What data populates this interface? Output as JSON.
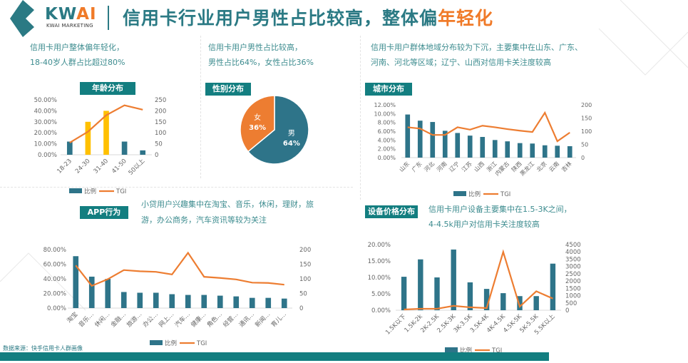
{
  "header": {
    "brand": "KW",
    "brand_accent": "AI",
    "brand_sub": "KWAI MARKETING",
    "title_main": "信用卡行业用户男性占比较高，整体偏",
    "title_highlight": "年轻化"
  },
  "sections": {
    "age": {
      "desc1": "信用卡用户整体偏年轻化，",
      "desc2": "18-40岁人群占比超过80%",
      "tag": "年龄分布"
    },
    "gender": {
      "desc1": "信用卡用户男性占比较高，",
      "desc2": "男性占比64%，女性占比36%",
      "tag": "性别分布"
    },
    "city": {
      "desc1": "信用卡用户群体地域分布较为下沉，主要集中在山东、广东、",
      "desc2": "河南、河北等区域；辽宁、山西对信用卡关注度较高",
      "tag": "城市分布"
    },
    "app": {
      "desc1": "小贷用户兴趣集中在淘宝、音乐，休闲，理财，旅",
      "desc2": "游，办公商务，汽车资讯等较为关注",
      "tag": "APP行为"
    },
    "device": {
      "desc1": "信用卡用户设备主要集中在1.5-3K之间，",
      "desc2": "4-4.5k用户对信用卡关注度较高",
      "tag": "设备价格分布"
    }
  },
  "source": "数据来源：快手信用卡人群画像",
  "colors": {
    "teal": "#2e7489",
    "orange": "#ed7d31",
    "yellow": "#ffc000",
    "tag_bg": "#137e80",
    "brand": "#2b7a84"
  },
  "chart_data": [
    {
      "id": "age",
      "type": "bar+line",
      "categories": [
        "18-23",
        "24-30",
        "31-40",
        "41-50",
        "50以上"
      ],
      "series": [
        {
          "name": "比例",
          "type": "bar",
          "axis": "left",
          "values": [
            12,
            30,
            40,
            12,
            4
          ],
          "highlight": [
            false,
            true,
            true,
            false,
            false
          ]
        },
        {
          "name": "TGI",
          "type": "line",
          "axis": "right",
          "values": [
            55,
            105,
            180,
            225,
            205
          ]
        }
      ],
      "ylim_left": [
        0,
        50
      ],
      "yticks_left": [
        "0.00%",
        "10.00%",
        "20.00%",
        "30.00%",
        "40.00%",
        "50.00%"
      ],
      "ylim_right": [
        0,
        250
      ],
      "yticks_right": [
        "0",
        "50",
        "100",
        "150",
        "200",
        "250"
      ],
      "legend": "bottom"
    },
    {
      "id": "gender",
      "type": "pie",
      "slices": [
        {
          "label": "男",
          "value": 64,
          "text": "64%"
        },
        {
          "label": "女",
          "value": 36,
          "text": "36%"
        }
      ]
    },
    {
      "id": "city",
      "type": "bar+line",
      "categories": [
        "山东",
        "广东",
        "河北",
        "河南",
        "辽宁",
        "江苏",
        "山西",
        "浙江",
        "内蒙古",
        "陕西",
        "黑龙江",
        "北京",
        "云南",
        "吉林"
      ],
      "series": [
        {
          "name": "比例",
          "type": "bar",
          "axis": "left",
          "values": [
            9.8,
            8.4,
            8.1,
            6.1,
            5.6,
            5.0,
            4.7,
            4.0,
            3.7,
            3.3,
            3.2,
            2.8,
            2.7,
            2.6
          ]
        },
        {
          "name": "TGI",
          "type": "line",
          "axis": "right",
          "values": [
            115,
            110,
            86,
            86,
            115,
            106,
            121,
            115,
            108,
            102,
            97,
            170,
            62,
            95
          ]
        }
      ],
      "ylim_left": [
        0,
        12
      ],
      "yticks_left": [
        "0.00%",
        "2.00%",
        "4.00%",
        "6.00%",
        "8.00%",
        "10.00%",
        "12.00%"
      ],
      "ylim_right": [
        0,
        200
      ],
      "yticks_right": [
        "0",
        "50",
        "100",
        "150",
        "200"
      ],
      "legend": "bottom"
    },
    {
      "id": "app",
      "type": "bar+line",
      "categories": [
        "淘宝",
        "音乐…",
        "休闲…",
        "金融…",
        "旅游…",
        "办公…",
        "网上…",
        "汽车…",
        "健康…",
        "角色…",
        "经营…",
        "通讯…",
        "新闻…",
        "育儿…"
      ],
      "series": [
        {
          "name": "比例",
          "type": "bar",
          "axis": "left",
          "values": [
            71,
            43,
            40,
            22,
            21,
            21,
            19,
            18,
            18,
            17,
            16,
            14,
            14,
            13
          ]
        },
        {
          "name": "TGI",
          "type": "line",
          "axis": "right",
          "values": [
            146,
            76,
            99,
            130,
            126,
            124,
            115,
            189,
            107,
            103,
            98,
            87,
            86,
            80
          ]
        }
      ],
      "ylim_left": [
        0,
        80
      ],
      "yticks_left": [
        "0.00%",
        "20.00%",
        "40.00%",
        "60.00%",
        "80.00%"
      ],
      "ylim_right": [
        0,
        200
      ],
      "yticks_right": [
        "0",
        "50",
        "100",
        "150",
        "200"
      ],
      "legend": "bottom"
    },
    {
      "id": "device",
      "type": "bar+line",
      "categories": [
        "1.5K以下",
        "1.5K-2k",
        "2K-2.5K",
        "2.5K-3K",
        "3K-3.5K",
        "3.5K-4K",
        "4K-4.5K",
        "4.5K-5K",
        "5K-5.5K",
        "5.5K以上"
      ],
      "series": [
        {
          "name": "比例",
          "type": "bar",
          "axis": "left",
          "values": [
            10.2,
            15.5,
            10.0,
            18.5,
            8.5,
            6.5,
            5.2,
            4.3,
            4.3,
            14.2
          ]
        },
        {
          "name": "TGI",
          "type": "line",
          "axis": "right",
          "values": [
            50,
            100,
            100,
            300,
            200,
            150,
            4000,
            250,
            1300,
            800
          ]
        }
      ],
      "ylim_left": [
        0,
        20
      ],
      "yticks_left": [
        "0.00%",
        "5.00%",
        "10.00%",
        "15.00%",
        "20.00%"
      ],
      "ylim_right": [
        0,
        4500
      ],
      "yticks_right": [
        "0",
        "500",
        "1000",
        "1500",
        "2000",
        "2500",
        "3000",
        "3500",
        "4000",
        "4500"
      ],
      "legend": "bottom"
    }
  ]
}
